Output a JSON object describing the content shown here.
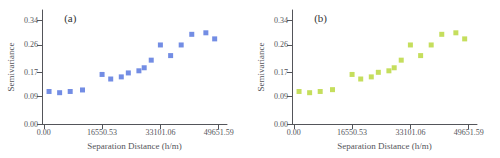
{
  "chart_data": [
    {
      "type": "scatter",
      "annotation": "(a)",
      "xlabel": "Separation Distance (h/m)",
      "ylabel": "Semivariance",
      "x": [
        1500,
        4500,
        7500,
        11000,
        16550,
        19000,
        22000,
        24000,
        27000,
        28500,
        30500,
        33100,
        36000,
        39000,
        42000,
        46000,
        48500
      ],
      "values": [
        0.107,
        0.103,
        0.107,
        0.112,
        0.163,
        0.148,
        0.155,
        0.168,
        0.175,
        0.185,
        0.21,
        0.26,
        0.225,
        0.26,
        0.295,
        0.3,
        0.28
      ],
      "marker": "square",
      "xlim": [
        -500,
        52000
      ],
      "xticks": [
        {
          "value": 0,
          "label": "0.00"
        },
        16550.53,
        33101.06,
        49651.59
      ],
      "ylim": [
        0.0,
        0.375
      ],
      "yticks": [
        {
          "value": 0,
          "label": "0.00"
        },
        0.09,
        0.17,
        0.26,
        0.34
      ],
      "grid": false
    },
    {
      "type": "scatter",
      "annotation": "(b)",
      "xlabel": "Separation Distance (h/m)",
      "ylabel": "Semivariance",
      "x": [
        1500,
        4500,
        7500,
        11000,
        16550,
        19000,
        22000,
        24000,
        27000,
        28500,
        30500,
        33100,
        36000,
        39000,
        42000,
        46000,
        48500
      ],
      "values": [
        0.107,
        0.103,
        0.107,
        0.113,
        0.163,
        0.148,
        0.155,
        0.17,
        0.175,
        0.185,
        0.21,
        0.26,
        0.225,
        0.26,
        0.295,
        0.3,
        0.28
      ],
      "marker": "square",
      "xlim": [
        -500,
        52000
      ],
      "xticks": [
        {
          "value": 0,
          "label": "0.00"
        },
        16550.53,
        33101.06,
        49651.59
      ],
      "ylim": [
        0.0,
        0.375
      ],
      "yticks": [
        {
          "value": 0,
          "label": "0.00"
        },
        0.09,
        0.17,
        0.26,
        0.34
      ],
      "grid": false
    }
  ]
}
